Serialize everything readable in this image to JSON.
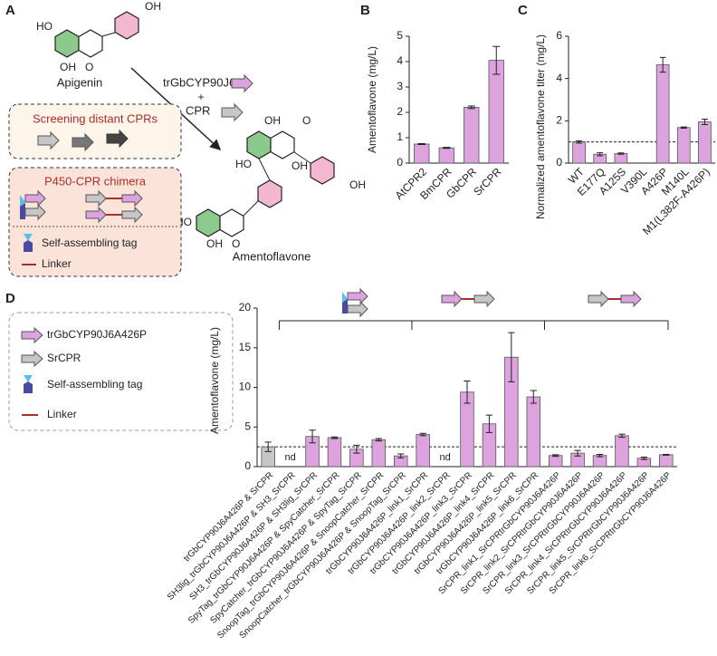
{
  "panel_labels": [
    "A",
    "B",
    "C",
    "D"
  ],
  "diagram": {
    "apigenin": "Apigenin",
    "enzyme": "trGbCYP90J6",
    "plus": "+",
    "cpr": "CPR",
    "product": "Amentoflavone",
    "screening": "Screening distant CPRs",
    "chimera": "P450-CPR chimera",
    "tag": "Self-assembling tag",
    "linker": "Linker",
    "atoms": [
      "HO",
      "OH",
      "OH",
      "O",
      "OH",
      "O",
      "HO",
      "OH",
      "OH",
      "HO",
      "OH",
      "O"
    ]
  },
  "legend_d": {
    "p450": "trGbCYP90J6A426P",
    "cpr": "SrCPR",
    "tag": "Self-assembling tag",
    "linker": "Linker"
  },
  "chart_data": [
    {
      "type": "bar",
      "ylabel": "Amentoflavone (mg/L)",
      "categories": [
        "AtCPR2",
        "BmCPR",
        "GbCPR",
        "SrCPR"
      ],
      "values": [
        0.75,
        0.6,
        2.2,
        4.05
      ],
      "errors": [
        0.02,
        0.02,
        0.05,
        0.55
      ],
      "color": "#dca3df",
      "ylim": [
        0,
        5
      ],
      "yticks": [
        0,
        1,
        2,
        3,
        4,
        5
      ]
    },
    {
      "type": "bar",
      "ylabel": "Normalized amentoflavone titer (mg/L)",
      "categories": [
        "WT",
        "E177Q",
        "A125S",
        "V390L",
        "A426P",
        "M140L",
        "M1(L382F-A426P)"
      ],
      "values": [
        1.0,
        0.42,
        0.45,
        0,
        4.65,
        1.68,
        1.95
      ],
      "errors": [
        0.05,
        0.07,
        0.03,
        0,
        0.35,
        0.03,
        0.13
      ],
      "color": "#dca3df",
      "ylim": [
        0,
        6
      ],
      "yticks": [
        0,
        2,
        4,
        6
      ],
      "hline": 1
    },
    {
      "type": "bar",
      "ylabel": "Amentoflavone (mg/L)",
      "categories": [
        "trGbCYP90J6A426P & SrCPR",
        "SH3lig_trGbCYP90J6A426P & SH3_SrCPR",
        "SH3_trGbCYP90J6A426P & SH3lig_SrCPR",
        "SpyTag_trGbCYP90J6A426P & SpyCatcher_SrCPR",
        "SpyCatcher_trGbCYP90J6A426P & SpyTag_SrCPR",
        "SnoopTag_trGbCYP90J6A426P & SnoopCatcher_SrCPR",
        "SnoopCatcher_trGbCYP90J6A426P & SnoopTag_SrCPR",
        "trGbCYP90J6A426P_link1_SrCPR",
        "trGbCYP90J6A426P_link2_SrCPR",
        "trGbCYP90J6A426P_link3_SrCPR",
        "trGbCYP90J6A426P_link4_SrCPR",
        "trGbCYP90J6A426P_link5_SrCPR",
        "trGbCYP90J6A426P_link6_SrCPR",
        "SrCPR_link1_SrCPRtrGbCYP90J6A426P",
        "SrCPR_link2_SrCPRtrGbCYP90J6A426P",
        "SrCPR_link3_SrCPRtrGbCYP90J6A426P",
        "SrCPR_link4_SrCPRtrGbCYP90J6A426P",
        "SrCPR_link5_SrCPRtrGbCYP90J6A426P",
        "SrCPR_link6_SrCPRtrGbCYP90J6A426P"
      ],
      "values": [
        2.5,
        null,
        3.8,
        3.65,
        2.2,
        3.4,
        1.35,
        4.05,
        null,
        9.4,
        5.4,
        13.8,
        8.8,
        1.4,
        1.7,
        1.4,
        3.9,
        1.05,
        1.5
      ],
      "errors": [
        0.6,
        null,
        0.8,
        0.1,
        0.5,
        0.15,
        0.25,
        0.15,
        null,
        1.4,
        1.1,
        3.1,
        0.8,
        0.1,
        0.35,
        0.15,
        0.2,
        0.15,
        0.05
      ],
      "value_labels": [
        null,
        "nd",
        null,
        null,
        null,
        null,
        null,
        null,
        "nd",
        null,
        null,
        null,
        null,
        null,
        null,
        null,
        null,
        null,
        null
      ],
      "colors": [
        "#c6c6c6",
        "#dca3df",
        "#dca3df",
        "#dca3df",
        "#dca3df",
        "#dca3df",
        "#dca3df",
        "#dca3df",
        "#dca3df",
        "#dca3df",
        "#dca3df",
        "#dca3df",
        "#dca3df",
        "#dca3df",
        "#dca3df",
        "#dca3df",
        "#dca3df",
        "#dca3df",
        "#dca3df"
      ],
      "ylim": [
        0,
        20
      ],
      "yticks": [
        0,
        5,
        10,
        15,
        20
      ],
      "hline": 2.5
    }
  ]
}
